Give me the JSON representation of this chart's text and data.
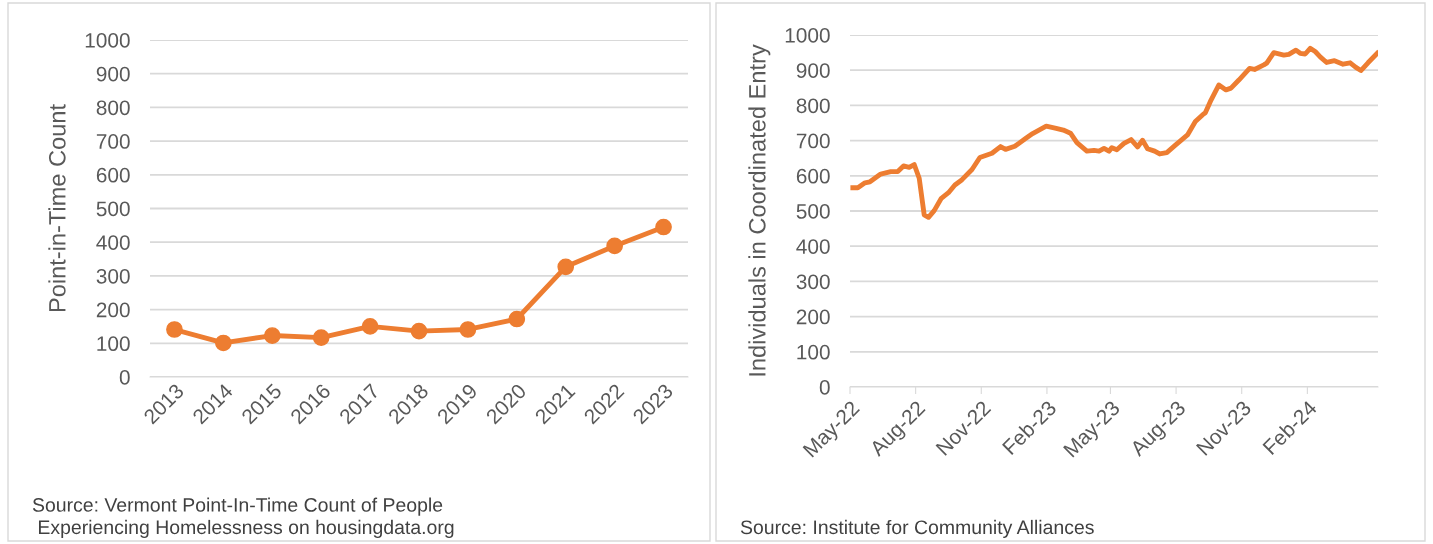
{
  "chart_data": [
    {
      "type": "line",
      "ylabel": "Point-in-Time Count",
      "categories": [
        "2013",
        "2014",
        "2015",
        "2016",
        "2017",
        "2018",
        "2019",
        "2020",
        "2021",
        "2022",
        "2023"
      ],
      "series": [
        {
          "color": "#ed7d31",
          "values": [
            141,
            101,
            123,
            117,
            150,
            136,
            141,
            172,
            327,
            389,
            445
          ]
        }
      ],
      "ylim": [
        0,
        1000
      ],
      "yticks": [
        0,
        100,
        200,
        300,
        400,
        500,
        600,
        700,
        800,
        900,
        1000
      ],
      "grid": "y",
      "marker": "circle",
      "annotations": [
        "Source: Vermont Point-In-Time Count of People\n Experiencing Homelessness on housingdata.org"
      ]
    },
    {
      "type": "line",
      "ylabel": "Individuals in Coordinated Entry",
      "x": [
        "2022-05-05",
        "2022-05-12",
        "2022-05-22",
        "2022-05-29",
        "2022-06-13",
        "2022-06-27",
        "2022-07-07",
        "2022-07-15",
        "2022-07-23",
        "2022-07-30",
        "2022-08-06",
        "2022-08-13",
        "2022-08-19",
        "2022-08-27",
        "2022-09-06",
        "2022-09-16",
        "2022-09-25",
        "2022-10-05",
        "2022-10-19",
        "2022-10-30",
        "2022-11-16",
        "2022-11-28",
        "2022-12-05",
        "2022-12-18",
        "2023-01-02",
        "2023-01-12",
        "2023-01-31",
        "2023-02-14",
        "2023-02-24",
        "2023-03-06",
        "2023-03-15",
        "2023-03-29",
        "2023-04-08",
        "2023-04-15",
        "2023-04-22",
        "2023-04-29",
        "2023-05-03",
        "2023-05-10",
        "2023-05-20",
        "2023-05-30",
        "2023-06-08",
        "2023-06-15",
        "2023-06-22",
        "2023-07-02",
        "2023-07-09",
        "2023-07-19",
        "2023-07-31",
        "2023-08-10",
        "2023-08-17",
        "2023-08-28",
        "2023-09-07",
        "2023-09-11",
        "2023-09-19",
        "2023-09-30",
        "2023-10-10",
        "2023-10-17",
        "2023-10-28",
        "2023-11-12",
        "2023-11-19",
        "2023-12-02",
        "2023-12-06",
        "2023-12-16",
        "2023-12-30",
        "2024-01-06",
        "2024-01-16",
        "2024-01-22",
        "2024-01-29",
        "2024-02-05",
        "2024-02-12",
        "2024-02-19",
        "2024-02-28",
        "2024-03-10",
        "2024-03-22",
        "2024-04-01",
        "2024-04-09",
        "2024-04-16",
        "2024-04-26",
        "2024-05-09"
      ],
      "series": [
        {
          "color": "#ed7d31",
          "values": [
            566,
            566,
            580,
            583,
            605,
            612,
            612,
            628,
            624,
            632,
            593,
            489,
            482,
            501,
            536,
            552,
            574,
            589,
            618,
            652,
            664,
            683,
            675,
            684,
            706,
            720,
            741,
            735,
            730,
            721,
            694,
            670,
            672,
            670,
            678,
            670,
            680,
            674,
            692,
            703,
            682,
            701,
            677,
            670,
            662,
            666,
            687,
            704,
            716,
            754,
            773,
            779,
            815,
            858,
            844,
            849,
            872,
            905,
            902,
            915,
            920,
            950,
            943,
            945,
            957,
            948,
            946,
            962,
            953,
            938,
            922,
            927,
            917,
            921,
            908,
            899,
            921,
            948
          ]
        }
      ],
      "xlim": [
        "2022-05-01",
        "2024-05-10"
      ],
      "xticks": [
        {
          "value": "2022-05-01",
          "label": "May-22"
        },
        {
          "value": "2022-08-01",
          "label": "Aug-22"
        },
        {
          "value": "2022-11-01",
          "label": "Nov-22"
        },
        {
          "value": "2023-02-01",
          "label": "Feb-23"
        },
        {
          "value": "2023-05-01",
          "label": "May-23"
        },
        {
          "value": "2023-08-01",
          "label": "Aug-23"
        },
        {
          "value": "2023-11-01",
          "label": "Nov-23"
        },
        {
          "value": "2024-02-01",
          "label": "Feb-24"
        }
      ],
      "ylim": [
        0,
        1000
      ],
      "yticks": [
        0,
        100,
        200,
        300,
        400,
        500,
        600,
        700,
        800,
        900,
        1000
      ],
      "grid": "y",
      "annotations": [
        "Source: Institute for Community Alliances"
      ]
    }
  ]
}
